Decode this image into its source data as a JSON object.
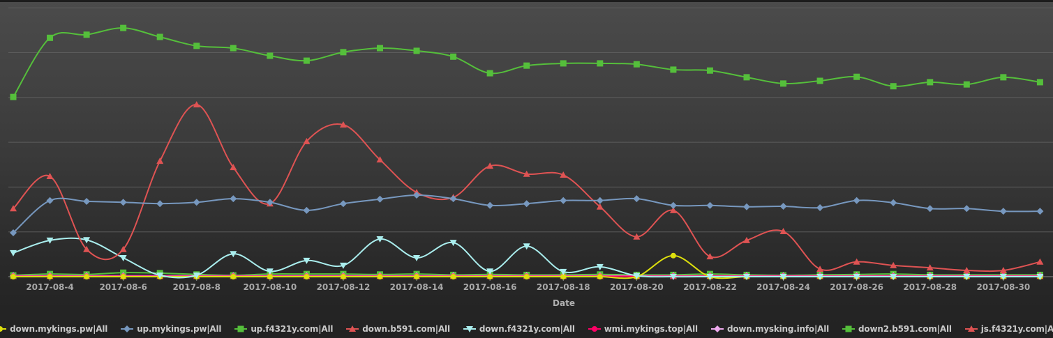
{
  "chart_data": {
    "type": "line",
    "title": "",
    "xlabel": "Date",
    "ylabel": "",
    "ylim": [
      0,
      6
    ],
    "grid": true,
    "legend_placement": "bottom-center",
    "x": [
      "2017-08-3",
      "2017-08-4",
      "2017-08-5",
      "2017-08-6",
      "2017-08-7",
      "2017-08-8",
      "2017-08-9",
      "2017-08-10",
      "2017-08-11",
      "2017-08-12",
      "2017-08-13",
      "2017-08-14",
      "2017-08-15",
      "2017-08-16",
      "2017-08-17",
      "2017-08-18",
      "2017-08-19",
      "2017-08-20",
      "2017-08-21",
      "2017-08-22",
      "2017-08-23",
      "2017-08-24",
      "2017-08-25",
      "2017-08-26",
      "2017-08-27",
      "2017-08-28",
      "2017-08-29",
      "2017-08-30",
      "2017-08-31"
    ],
    "x_tick_labels": [
      "2017-08-4",
      "2017-08-6",
      "2017-08-8",
      "2017-08-10",
      "2017-08-12",
      "2017-08-14",
      "2017-08-16",
      "2017-08-18",
      "2017-08-20",
      "2017-08-22",
      "2017-08-24",
      "2017-08-26",
      "2017-08-28",
      "2017-08-30"
    ],
    "series": [
      {
        "name": "down.mykings.pw|All",
        "color": "#DDDF0D",
        "marker": "circle",
        "values": [
          0,
          0,
          0,
          0,
          0,
          0,
          0,
          0,
          0,
          0,
          0,
          0,
          0,
          0,
          0,
          0,
          0,
          0,
          0.47,
          0,
          0,
          0,
          0,
          0,
          0,
          0,
          0,
          0,
          0
        ]
      },
      {
        "name": "up.mykings.pw|All",
        "color": "#7798BF",
        "marker": "diamond",
        "values": [
          0.98,
          1.7,
          1.68,
          1.66,
          1.63,
          1.66,
          1.74,
          1.66,
          1.48,
          1.63,
          1.73,
          1.82,
          1.74,
          1.59,
          1.63,
          1.7,
          1.7,
          1.74,
          1.59,
          1.59,
          1.56,
          1.57,
          1.54,
          1.7,
          1.65,
          1.52,
          1.52,
          1.46,
          1.46
        ]
      },
      {
        "name": "up.f4321y.com|All",
        "color": "#55BF3B",
        "marker": "square",
        "values": [
          4.01,
          5.33,
          5.4,
          5.55,
          5.35,
          5.15,
          5.1,
          4.93,
          4.82,
          5.01,
          5.1,
          5.04,
          4.91,
          4.54,
          4.71,
          4.76,
          4.76,
          4.74,
          4.62,
          4.6,
          4.45,
          4.31,
          4.37,
          4.46,
          4.25,
          4.34,
          4.29,
          4.45,
          4.34
        ]
      },
      {
        "name": "down.b591.com|All",
        "color": "#DF5353",
        "marker": "triangle",
        "values": [
          1.52,
          2.24,
          0.61,
          0.61,
          2.58,
          3.84,
          2.44,
          1.63,
          3.02,
          3.39,
          2.61,
          1.88,
          1.77,
          2.47,
          2.29,
          2.27,
          1.56,
          0.89,
          1.48,
          0.45,
          0.81,
          1.01,
          0.17,
          0.33,
          0.25,
          0.2,
          0.14,
          0.14,
          0.33
        ]
      },
      {
        "name": "down.f4321y.com|All",
        "color": "#aaeeee",
        "marker": "triangle-down",
        "values": [
          0.53,
          0.81,
          0.82,
          0.42,
          0.03,
          0.03,
          0.51,
          0.12,
          0.36,
          0.25,
          0.84,
          0.42,
          0.76,
          0.12,
          0.68,
          0.11,
          0.22,
          0.02,
          0,
          0,
          0,
          0,
          0,
          0,
          0,
          0,
          0,
          0,
          0
        ]
      },
      {
        "name": "wmi.mykings.top|All",
        "color": "#ff0066",
        "marker": "circle",
        "values": [
          0.01,
          0.01,
          0.01,
          0.01,
          0.01,
          0.01,
          0.01,
          0.01,
          0.01,
          0.01,
          0.01,
          0.01,
          0.01,
          0.01,
          0.01,
          0.01,
          0.01,
          0.01,
          0.01,
          0.01,
          0.01,
          0.01,
          0.01,
          0.01,
          0.01,
          0.01,
          0.01,
          0.01,
          0.01
        ]
      },
      {
        "name": "down.mysking.info|All",
        "color": "#eeaaee",
        "marker": "diamond",
        "values": [
          0.02,
          0.02,
          0.02,
          0.02,
          0.02,
          0.02,
          0.02,
          0.02,
          0.02,
          0.02,
          0.02,
          0.02,
          0.02,
          0.02,
          0.02,
          0.02,
          0.02,
          0.02,
          0.02,
          0.02,
          0.02,
          0.02,
          0.02,
          0.02,
          0.02,
          0.02,
          0.02,
          0.02,
          0.02
        ]
      },
      {
        "name": "down2.b591.com|All",
        "color": "#55BF3B",
        "marker": "square",
        "values": [
          0.03,
          0.06,
          0.05,
          0.09,
          0.08,
          0.05,
          0.03,
          0.06,
          0.06,
          0.06,
          0.05,
          0.06,
          0.04,
          0.05,
          0.04,
          0.04,
          0.05,
          0.04,
          0.04,
          0.06,
          0.04,
          0.03,
          0.04,
          0.05,
          0.06,
          0.04,
          0.04,
          0.04,
          0.04
        ]
      },
      {
        "name": "js.f4321y.com|All",
        "color": "#DF5353",
        "marker": "triangle",
        "values": [
          0.01,
          0.01,
          0.01,
          0.01,
          0.01,
          0.01,
          0.01,
          0.01,
          0.01,
          0.01,
          0.01,
          0.01,
          0.01,
          0.01,
          0.01,
          0.01,
          0.01,
          0.01,
          0.01,
          0.01,
          0.01,
          0.01,
          0.01,
          0.01,
          0.01,
          0.01,
          0.01,
          0.01,
          0.01
        ]
      }
    ]
  }
}
